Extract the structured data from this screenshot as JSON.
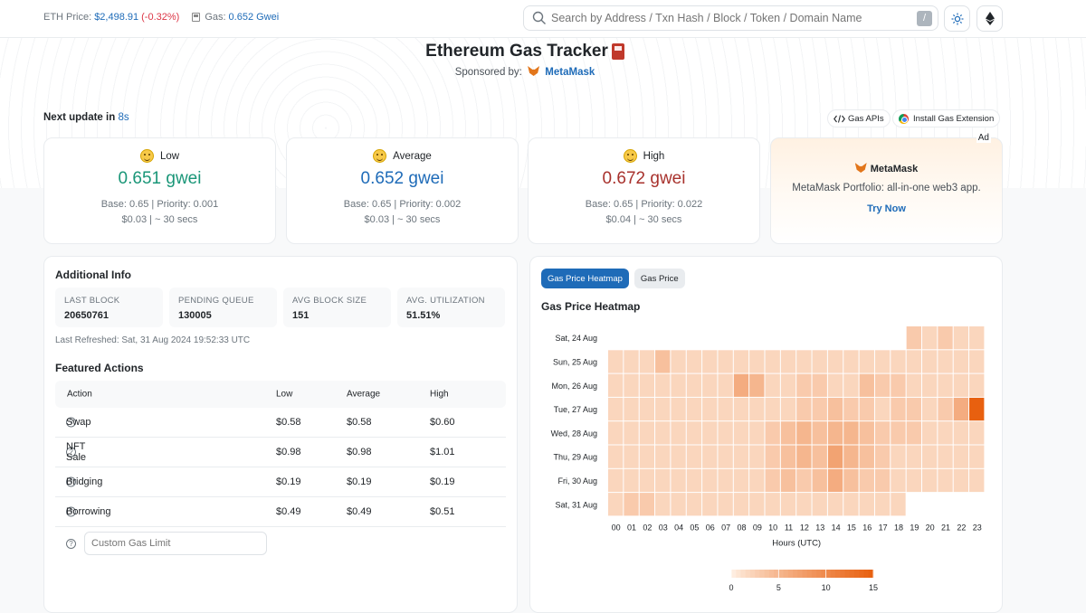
{
  "topbar": {
    "eth_price_label": "ETH Price:",
    "eth_price_value": "$2,498.91",
    "eth_price_change": "(-0.32%)",
    "gas_label": "Gas:",
    "gas_value": "0.652 Gwei",
    "search_placeholder": "Search by Address / Txn Hash / Block / Token / Domain Name",
    "search_shortcut": "/"
  },
  "hero": {
    "title": "Ethereum Gas Tracker",
    "sponsored_label": "Sponsored by:",
    "sponsor_name": "MetaMask"
  },
  "update": {
    "label": "Next update in",
    "seconds": "8s",
    "gas_apis": "Gas APIs",
    "install_ext": "Install Gas Extension"
  },
  "gas_cards": [
    {
      "label": "Low",
      "price": "0.651 gwei",
      "color": "#1a9678",
      "base": "Base: 0.65 | Priority: 0.001",
      "cost": "$0.03 | ~ 30 secs"
    },
    {
      "label": "Average",
      "price": "0.652 gwei",
      "color": "#1e6bb8",
      "base": "Base: 0.65 | Priority: 0.002",
      "cost": "$0.03 | ~ 30 secs"
    },
    {
      "label": "High",
      "price": "0.672 gwei",
      "color": "#a8322d",
      "base": "Base: 0.65 | Priority: 0.022",
      "cost": "$0.04 | ~ 30 secs"
    }
  ],
  "ad": {
    "badge": "Ad",
    "brand": "MetaMask",
    "description": "MetaMask Portfolio: all-in-one web3 app.",
    "cta": "Try Now"
  },
  "info": {
    "title": "Additional Info",
    "stats": [
      {
        "key": "LAST BLOCK",
        "value": "20650761"
      },
      {
        "key": "PENDING QUEUE",
        "value": "130005"
      },
      {
        "key": "AVG BLOCK SIZE",
        "value": "151"
      },
      {
        "key": "AVG. UTILIZATION",
        "value": "51.51%"
      }
    ],
    "refreshed": "Last Refreshed: Sat, 31 Aug 2024 19:52:33 UTC",
    "featured_title": "Featured Actions",
    "columns": [
      "Action",
      "Low",
      "Average",
      "High"
    ],
    "rows": [
      {
        "action": "Swap",
        "low": "$0.58",
        "avg": "$0.58",
        "high": "$0.60"
      },
      {
        "action": "NFT Sale",
        "low": "$0.98",
        "avg": "$0.98",
        "high": "$1.01"
      },
      {
        "action": "Bridging",
        "low": "$0.19",
        "avg": "$0.19",
        "high": "$0.19"
      },
      {
        "action": "Borrowing",
        "low": "$0.49",
        "avg": "$0.49",
        "high": "$0.51"
      }
    ],
    "custom_placeholder": "Custom Gas Limit"
  },
  "heatmap_panel": {
    "tab_active": "Gas Price Heatmap",
    "tab_inactive": "Gas Price",
    "title": "Gas Price Heatmap"
  },
  "chart_data": {
    "type": "heatmap",
    "title": "Gas Price Heatmap",
    "xlabel": "Hours (UTC)",
    "ylabel": "",
    "days": [
      "Sat, 24 Aug",
      "Sun, 25 Aug",
      "Mon, 26 Aug",
      "Tue, 27 Aug",
      "Wed, 28 Aug",
      "Thu, 29 Aug",
      "Fri, 30 Aug",
      "Sat, 31 Aug"
    ],
    "hours": [
      "00",
      "01",
      "02",
      "03",
      "04",
      "05",
      "06",
      "07",
      "08",
      "09",
      "10",
      "11",
      "12",
      "13",
      "14",
      "15",
      "16",
      "17",
      "18",
      "19",
      "20",
      "21",
      "22",
      "23"
    ],
    "values": [
      [
        null,
        null,
        null,
        null,
        null,
        null,
        null,
        null,
        null,
        null,
        null,
        null,
        null,
        null,
        null,
        null,
        null,
        null,
        null,
        3,
        2,
        3,
        2,
        2
      ],
      [
        2,
        2,
        2,
        4,
        2,
        2,
        2,
        2,
        2,
        2,
        2,
        2,
        2,
        2,
        2,
        2,
        2,
        2,
        2,
        2,
        2,
        2,
        2,
        2
      ],
      [
        2,
        2,
        2,
        2,
        2,
        2,
        2,
        2,
        6,
        5,
        2,
        2,
        3,
        3,
        2,
        2,
        4,
        3,
        3,
        2,
        2,
        2,
        2,
        2
      ],
      [
        2,
        2,
        2,
        2,
        2,
        2,
        2,
        2,
        2,
        2,
        2,
        2,
        3,
        3,
        4,
        3,
        3,
        2,
        3,
        3,
        2,
        3,
        6,
        15
      ],
      [
        2,
        2,
        2,
        2,
        2,
        2,
        2,
        2,
        2,
        2,
        3,
        4,
        5,
        4,
        5,
        5,
        4,
        3,
        3,
        3,
        2,
        2,
        2,
        2
      ],
      [
        2,
        2,
        2,
        2,
        2,
        2,
        2,
        2,
        2,
        2,
        3,
        4,
        5,
        4,
        7,
        5,
        4,
        3,
        2,
        2,
        2,
        2,
        2,
        2
      ],
      [
        2,
        2,
        2,
        2,
        2,
        2,
        2,
        2,
        2,
        2,
        3,
        4,
        3,
        4,
        6,
        4,
        3,
        3,
        2,
        2,
        2,
        2,
        2,
        2
      ],
      [
        2,
        3,
        3,
        2,
        2,
        2,
        2,
        2,
        2,
        2,
        2,
        2,
        2,
        2,
        2,
        2,
        2,
        2,
        2,
        null,
        null,
        null,
        null,
        null
      ]
    ],
    "colorscale_ticks": [
      0,
      5,
      10,
      15
    ],
    "color_min": "#fff3e8",
    "color_max": "#e8600f"
  }
}
